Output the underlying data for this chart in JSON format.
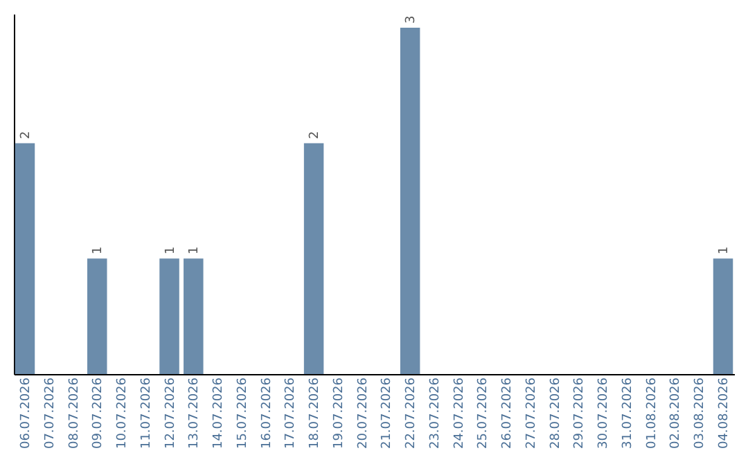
{
  "chart_data": {
    "type": "bar",
    "categories": [
      "06.07.2026",
      "07.07.2026",
      "08.07.2026",
      "09.07.2026",
      "10.07.2026",
      "11.07.2026",
      "12.07.2026",
      "13.07.2026",
      "14.07.2026",
      "15.07.2026",
      "16.07.2026",
      "17.07.2026",
      "18.07.2026",
      "19.07.2026",
      "20.07.2026",
      "21.07.2026",
      "22.07.2026",
      "23.07.2026",
      "24.07.2026",
      "25.07.2026",
      "26.07.2026",
      "27.07.2026",
      "28.07.2026",
      "29.07.2026",
      "30.07.2026",
      "31.07.2026",
      "01.08.2026",
      "02.08.2026",
      "03.08.2026",
      "04.08.2026"
    ],
    "values": [
      2,
      0,
      0,
      1,
      0,
      0,
      1,
      1,
      0,
      0,
      0,
      0,
      2,
      0,
      0,
      0,
      3,
      0,
      0,
      0,
      0,
      0,
      0,
      0,
      0,
      0,
      0,
      0,
      0,
      1
    ],
    "color": "#6b8cab",
    "value_labels": [
      "2",
      null,
      null,
      "1",
      null,
      null,
      "1",
      "1",
      null,
      null,
      null,
      null,
      "2",
      null,
      null,
      null,
      "3",
      null,
      null,
      null,
      null,
      null,
      null,
      null,
      null,
      null,
      null,
      null,
      null,
      "1"
    ],
    "grid": false
  }
}
